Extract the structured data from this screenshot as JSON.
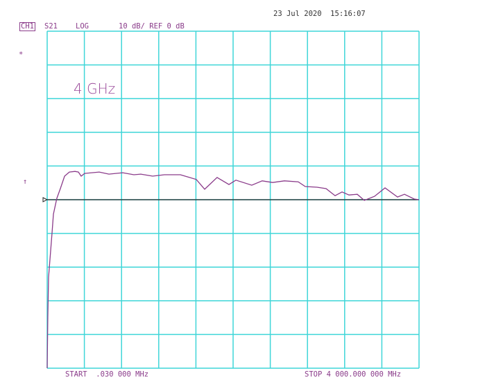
{
  "header": {
    "channel": "CH1",
    "parameter": "S21",
    "format": "LOG",
    "scale": "10 dB/ REF 0 dB",
    "datetime": "23 Jul 2020  15:16:07"
  },
  "markers": {
    "star": "*",
    "ref_arrow": "↑"
  },
  "annotation": "4 GHz",
  "footer": {
    "start": "START  .030 000 MHz",
    "stop": "STOP 4 000.000 000 MHz"
  },
  "colors": {
    "grid": "#3fd6d8",
    "trace": "#8a3b8a",
    "reference": "#222222",
    "text": "#8a3b8a"
  },
  "chart_data": {
    "type": "line",
    "title": "",
    "xlabel": "",
    "ylabel": "",
    "xlim": [
      0.03,
      4000
    ],
    "ylim": [
      -50,
      50
    ],
    "x_unit": "MHz",
    "y_unit": "dB",
    "grid": true,
    "divisions": {
      "x": 10,
      "y": 10
    },
    "reference_level": 0,
    "series": [
      {
        "x": [
          0.03,
          7,
          15,
          52,
          67,
          104,
          142,
          187,
          239,
          299,
          336,
          366,
          403,
          560,
          664,
          813,
          933,
          1007,
          1134,
          1261,
          1433,
          1604,
          1694,
          1828,
          1955,
          2030,
          2201,
          2313,
          2425,
          2552,
          2701,
          2776,
          2903,
          3000,
          3097,
          3172,
          3246,
          3336,
          3411,
          3522,
          3634,
          3769,
          3843,
          3948,
          4000
        ],
        "y": [
          -50,
          -35,
          -23,
          -9.9,
          -4.3,
          0.4,
          3.3,
          7.0,
          8.2,
          8.4,
          8.2,
          7.0,
          7.8,
          8.2,
          7.6,
          8.0,
          7.4,
          7.6,
          7.0,
          7.4,
          7.4,
          6.0,
          3.1,
          6.6,
          4.5,
          5.8,
          4.3,
          5.6,
          5.1,
          5.6,
          5.3,
          3.9,
          3.7,
          3.3,
          1.2,
          2.3,
          1.4,
          1.6,
          -0.2,
          1.0,
          3.5,
          0.8,
          1.6,
          0.2,
          0
        ]
      }
    ]
  }
}
